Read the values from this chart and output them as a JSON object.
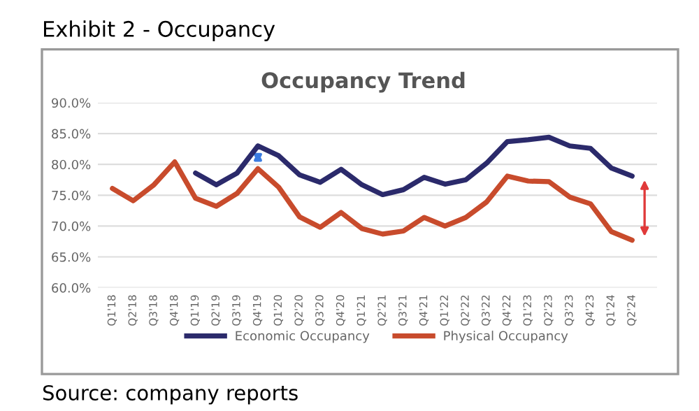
{
  "chart_data": {
    "type": "line",
    "title": "Exhibit 2 - Occupancy",
    "subtitle": "Occupancy Trend",
    "categories": [
      "Q1'18",
      "Q2'18",
      "Q3'18",
      "Q4'18",
      "Q1'19",
      "Q2'19",
      "Q3'19",
      "Q4'19",
      "Q1'20",
      "Q2'20",
      "Q3'20",
      "Q4'20",
      "Q1'21",
      "Q2'21",
      "Q3'21",
      "Q4'21",
      "Q1'22",
      "Q2'22",
      "Q3'22",
      "Q4'22",
      "Q1'23",
      "Q2'23",
      "Q3'23",
      "Q4'23",
      "Q1'24",
      "Q2'24"
    ],
    "series": [
      {
        "name": "Economic Occupancy",
        "color": "#2b2a6b",
        "values": [
          null,
          null,
          null,
          null,
          78.6,
          76.7,
          78.6,
          83.0,
          81.4,
          78.3,
          77.1,
          79.2,
          76.7,
          75.1,
          75.9,
          77.9,
          76.8,
          77.5,
          80.2,
          83.7,
          84.0,
          84.4,
          83.0,
          82.6,
          79.4,
          78.1
        ]
      },
      {
        "name": "Physical Occupancy",
        "color": "#c84b2c",
        "values": [
          76.1,
          74.1,
          76.7,
          80.4,
          74.5,
          73.2,
          75.3,
          79.3,
          76.3,
          71.5,
          69.8,
          72.2,
          69.6,
          68.7,
          69.2,
          71.4,
          70.0,
          71.4,
          73.9,
          78.1,
          77.3,
          77.2,
          74.7,
          73.6,
          69.1,
          67.7
        ]
      }
    ],
    "ylim": [
      60,
      90
    ],
    "yticks": [
      {
        "value": 60,
        "label": "60.0%"
      },
      {
        "value": 65,
        "label": "65.0%"
      },
      {
        "value": 70,
        "label": "70.0%"
      },
      {
        "value": 75,
        "label": "75.0%"
      },
      {
        "value": 80,
        "label": "80.0%"
      },
      {
        "value": 85,
        "label": "85.0%"
      },
      {
        "value": 90,
        "label": "90.0%"
      }
    ],
    "grid": "y",
    "legend": "bottom",
    "marker": "none",
    "line_style": "solid",
    "annotations": [
      "Source: company reports"
    ]
  }
}
